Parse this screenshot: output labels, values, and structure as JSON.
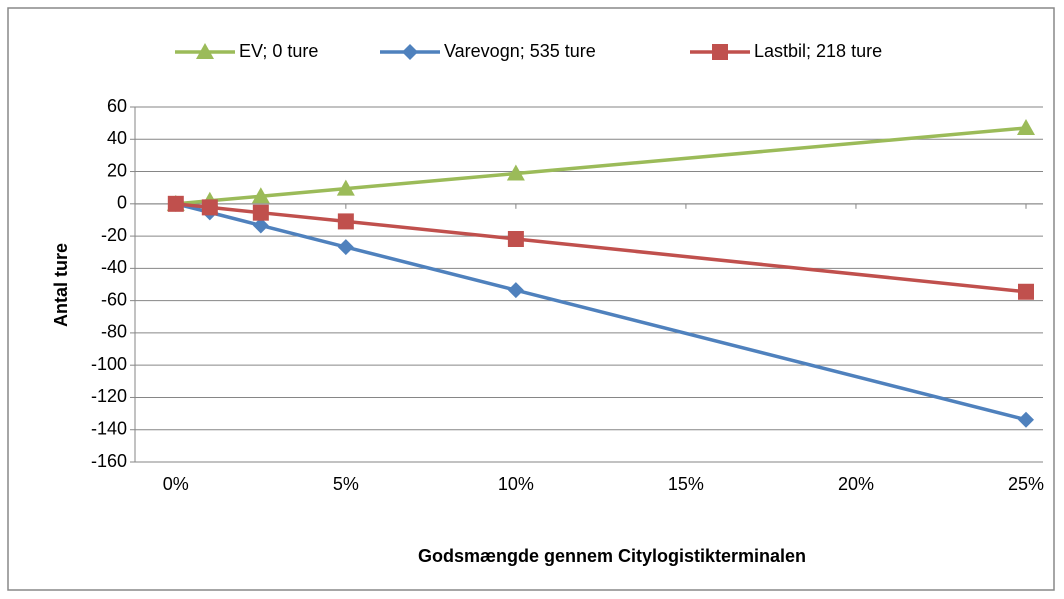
{
  "chart_data": {
    "type": "line",
    "x_label": "Godsmængde gennem Citylogistikterminalen",
    "y_label": "Antal ture",
    "x": [
      0,
      1,
      2.5,
      5,
      10,
      25
    ],
    "series": [
      {
        "name": "EV; 0 ture",
        "color": "#9bbb59",
        "marker": "triangle",
        "values": [
          0,
          1.9,
          4.7,
          9.4,
          18.8,
          47
        ]
      },
      {
        "name": "Varevogn; 535 ture",
        "color": "#4f81bd",
        "marker": "diamond",
        "values": [
          0,
          -5.3,
          -13.4,
          -26.8,
          -53.5,
          -133.8
        ]
      },
      {
        "name": "Lastbil; 218 ture",
        "color": "#c0504d",
        "marker": "square",
        "values": [
          0,
          -2.2,
          -5.5,
          -10.9,
          -21.8,
          -54.5
        ]
      }
    ],
    "xlim": [
      -1.2,
      25.5
    ],
    "xticks": [
      {
        "value": 0,
        "label": "0%"
      },
      {
        "value": 5,
        "label": "5%"
      },
      {
        "value": 10,
        "label": "10%"
      },
      {
        "value": 15,
        "label": "15%"
      },
      {
        "value": 20,
        "label": "20%"
      },
      {
        "value": 25,
        "label": "25%"
      }
    ],
    "ylim": [
      -160,
      60
    ],
    "yticks": [
      60,
      40,
      20,
      0,
      -20,
      -40,
      -60,
      -80,
      -100,
      -120,
      -140,
      -160
    ],
    "grid": true,
    "legend": "top"
  }
}
